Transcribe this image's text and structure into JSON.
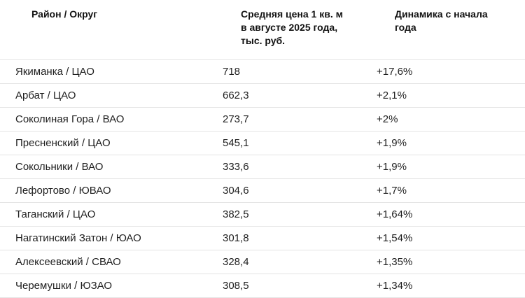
{
  "page": {
    "background": "#ffffff",
    "header_text_color": "#121212",
    "body_text_color": "#1f1f1f",
    "divider_color": "#e4e4e4"
  },
  "chart_data": {
    "type": "table",
    "columns": [
      "Район / Округ",
      "Средняя цена 1 кв. м в августе 2025 года, тыс. руб.",
      "Динамика с начала года"
    ],
    "rows": [
      [
        "Якиманка / ЦАО",
        "718",
        "+17,6%"
      ],
      [
        "Арбат / ЦАО",
        "662,3",
        "+2,1%"
      ],
      [
        "Соколиная Гора / ВАО",
        "273,7",
        "+2%"
      ],
      [
        "Пресненский / ЦАО",
        "545,1",
        "+1,9%"
      ],
      [
        "Сокольники / ВАО",
        "333,6",
        "+1,9%"
      ],
      [
        "Лефортово / ЮВАО",
        "304,6",
        "+1,7%"
      ],
      [
        "Таганский / ЦАО",
        "382,5",
        "+1,64%"
      ],
      [
        "Нагатинский Затон / ЮАО",
        "301,8",
        "+1,54%"
      ],
      [
        "Алексеевский / СВАО",
        "328,4",
        "+1,35%"
      ],
      [
        "Черемушки / ЮЗАО",
        "308,5",
        "+1,34%"
      ]
    ],
    "numeric": {
      "districts": [
        "Якиманка / ЦАО",
        "Арбат / ЦАО",
        "Соколиная Гора / ВАО",
        "Пресненский / ЦАО",
        "Сокольники / ВАО",
        "Лефортово / ЮВАО",
        "Таганский / ЦАО",
        "Нагатинский Затон / ЮАО",
        "Алексеевский / СВАО",
        "Черемушки / ЮЗАО"
      ],
      "avg_price_thousand_rub_aug_2025": [
        718,
        662.3,
        273.7,
        545.1,
        333.6,
        304.6,
        382.5,
        301.8,
        328.4,
        308.5
      ],
      "ytd_change_percent": [
        17.6,
        2.1,
        2.0,
        1.9,
        1.9,
        1.7,
        1.64,
        1.54,
        1.35,
        1.34
      ]
    }
  }
}
